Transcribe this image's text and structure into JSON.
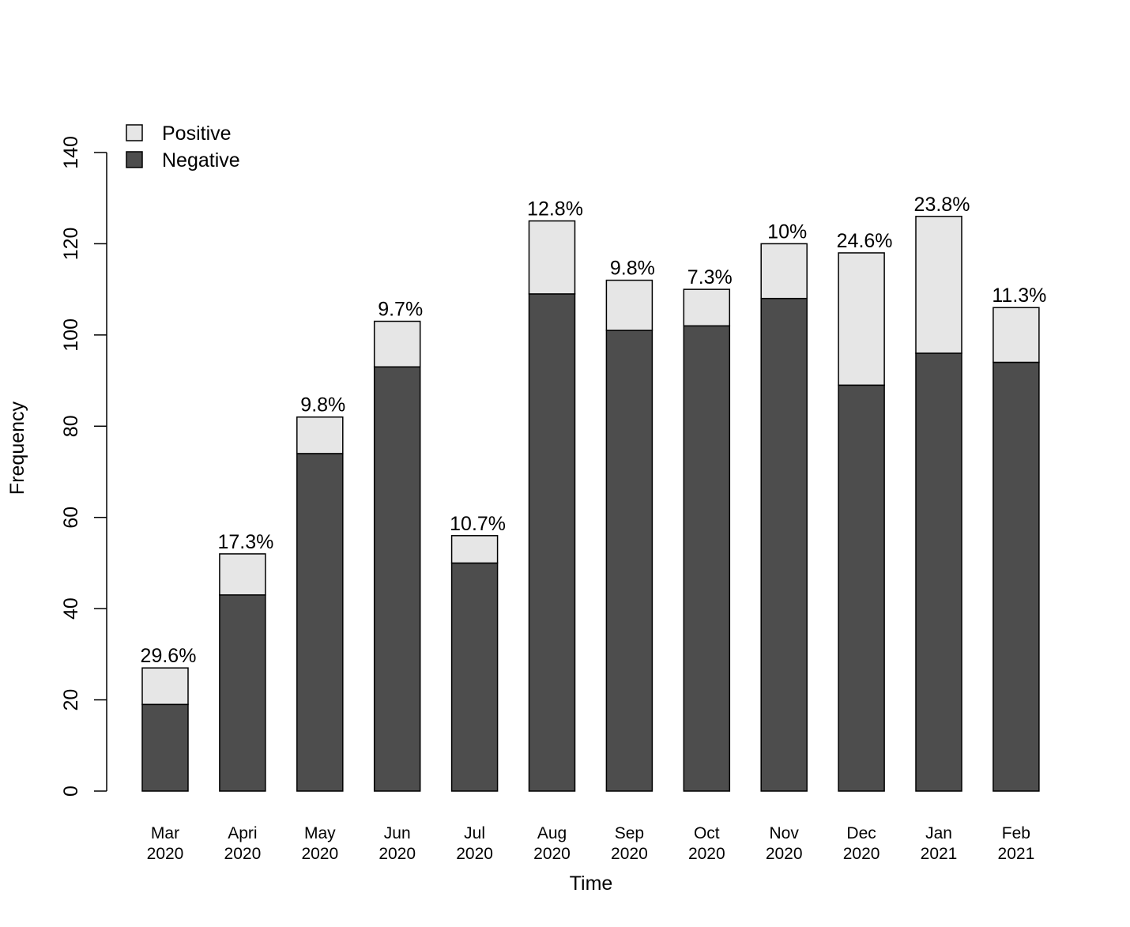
{
  "chart_data": {
    "type": "bar",
    "stacked": true,
    "categories": [
      [
        "Mar",
        "2020"
      ],
      [
        "Apri",
        "2020"
      ],
      [
        "May",
        "2020"
      ],
      [
        "Jun",
        "2020"
      ],
      [
        "Jul",
        "2020"
      ],
      [
        "Aug",
        "2020"
      ],
      [
        "Sep",
        "2020"
      ],
      [
        "Oct",
        "2020"
      ],
      [
        "Nov",
        "2020"
      ],
      [
        "Dec",
        "2020"
      ],
      [
        "Jan",
        "2021"
      ],
      [
        "Feb",
        "2021"
      ]
    ],
    "series": [
      {
        "name": "Negative",
        "color": "#4d4d4d",
        "values": [
          19,
          43,
          74,
          93,
          50,
          109,
          101,
          102,
          108,
          89,
          96,
          94
        ]
      },
      {
        "name": "Positive",
        "color": "#e6e6e6",
        "values": [
          8,
          9,
          8,
          10,
          6,
          16,
          11,
          8,
          12,
          29,
          30,
          12
        ]
      }
    ],
    "bar_labels": [
      "29.6%",
      "17.3%",
      "9.8%",
      "9.7%",
      "10.7%",
      "12.8%",
      "9.8%",
      "7.3%",
      "10%",
      "24.6%",
      "23.8%",
      "11.3%"
    ],
    "xlabel": "Time",
    "ylabel": "Frequency",
    "ylim": [
      0,
      140
    ],
    "yticks": [
      0,
      20,
      40,
      60,
      80,
      100,
      120,
      140
    ],
    "grid": false,
    "legend": {
      "placement": "top-left",
      "entries": [
        {
          "label": "Positive",
          "color": "#e6e6e6"
        },
        {
          "label": "Negative",
          "color": "#4d4d4d"
        }
      ]
    }
  }
}
